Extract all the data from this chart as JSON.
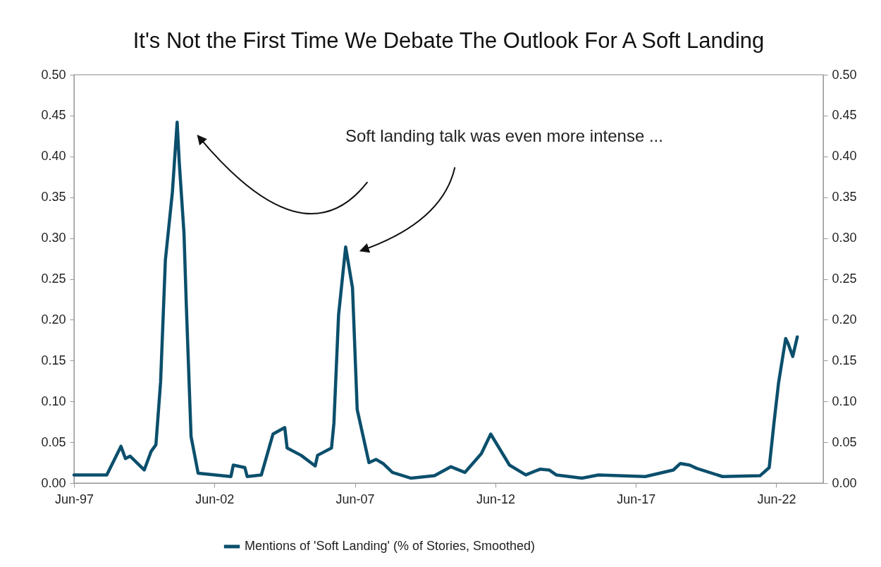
{
  "chart_data": {
    "type": "line",
    "title": "It's Not the First Time We Debate The Outlook For A Soft Landing",
    "annotations": [
      "Soft landing talk was even more intense ..."
    ],
    "x": [
      "1997-06",
      "1998-08",
      "1999-02",
      "1999-04",
      "1999-06",
      "1999-12",
      "2000-03",
      "2000-05",
      "2000-07",
      "2000-09",
      "2000-12",
      "2001-02",
      "2001-03",
      "2001-05",
      "2001-06",
      "2001-08",
      "2001-11",
      "2003-01",
      "2003-02",
      "2003-07",
      "2003-08",
      "2004-02",
      "2004-07",
      "2004-12",
      "2005-01",
      "2005-07",
      "2006-01",
      "2006-02",
      "2006-08",
      "2006-09",
      "2006-11",
      "2007-02",
      "2007-05",
      "2007-07",
      "2007-12",
      "2008-03",
      "2008-06",
      "2008-10",
      "2009-06",
      "2010-04",
      "2010-11",
      "2011-05",
      "2011-12",
      "2012-04",
      "2012-08",
      "2012-12",
      "2013-07",
      "2014-01",
      "2014-05",
      "2014-08",
      "2015-07",
      "2016-02",
      "2017-10",
      "2018-10",
      "2019-01",
      "2019-05",
      "2019-08",
      "2020-07",
      "2021-11",
      "2022-03",
      "2022-05",
      "2022-07",
      "2022-10",
      "2022-11",
      "2023-01",
      "2023-03"
    ],
    "series": [
      {
        "name": "Mentions of 'Soft Landing' (% of Stories, Smoothed)",
        "color": "#0b4f6c",
        "values": [
          0.01,
          0.01,
          0.045,
          0.03,
          0.033,
          0.016,
          0.039,
          0.047,
          0.124,
          0.273,
          0.356,
          0.442,
          0.392,
          0.306,
          0.216,
          0.057,
          0.012,
          0.008,
          0.022,
          0.019,
          0.008,
          0.01,
          0.06,
          0.068,
          0.043,
          0.034,
          0.021,
          0.034,
          0.043,
          0.073,
          0.206,
          0.289,
          0.239,
          0.09,
          0.025,
          0.029,
          0.024,
          0.013,
          0.006,
          0.009,
          0.02,
          0.013,
          0.036,
          0.06,
          0.041,
          0.022,
          0.01,
          0.017,
          0.016,
          0.01,
          0.006,
          0.01,
          0.008,
          0.016,
          0.024,
          0.022,
          0.018,
          0.008,
          0.009,
          0.019,
          0.073,
          0.123,
          0.177,
          0.171,
          0.155,
          0.179
        ]
      }
    ],
    "xlim": [
      "1997-06",
      "2024-02"
    ],
    "xticks": [
      {
        "value": "1997-06",
        "label": "Jun-97"
      },
      {
        "value": "2002-06",
        "label": "Jun-02"
      },
      {
        "value": "2007-06",
        "label": "Jun-07"
      },
      {
        "value": "2012-06",
        "label": "Jun-12"
      },
      {
        "value": "2017-06",
        "label": "Jun-17"
      },
      {
        "value": "2022-06",
        "label": "Jun-22"
      }
    ],
    "ylim": [
      0,
      0.5
    ],
    "yticks": [
      {
        "value": 0,
        "label": "0.00"
      },
      {
        "value": 0.05,
        "label": "0.05"
      },
      {
        "value": 0.1,
        "label": "0.10"
      },
      {
        "value": 0.15,
        "label": "0.15"
      },
      {
        "value": 0.2,
        "label": "0.20"
      },
      {
        "value": 0.25,
        "label": "0.25"
      },
      {
        "value": 0.3,
        "label": "0.30"
      },
      {
        "value": 0.35,
        "label": "0.35"
      },
      {
        "value": 0.4,
        "label": "0.40"
      },
      {
        "value": 0.45,
        "label": "0.45"
      },
      {
        "value": 0.5,
        "label": "0.50"
      }
    ],
    "y2lim": [
      0,
      0.5
    ],
    "y2ticks": [
      {
        "value": 0,
        "label": "0.00"
      },
      {
        "value": 0.05,
        "label": "0.05"
      },
      {
        "value": 0.1,
        "label": "0.10"
      },
      {
        "value": 0.15,
        "label": "0.15"
      },
      {
        "value": 0.2,
        "label": "0.20"
      },
      {
        "value": 0.25,
        "label": "0.25"
      },
      {
        "value": 0.3,
        "label": "0.30"
      },
      {
        "value": 0.35,
        "label": "0.35"
      },
      {
        "value": 0.4,
        "label": "0.40"
      },
      {
        "value": 0.45,
        "label": "0.45"
      },
      {
        "value": 0.5,
        "label": "0.50"
      }
    ],
    "grid": false,
    "legend": "bottom",
    "line_style": "solid"
  }
}
